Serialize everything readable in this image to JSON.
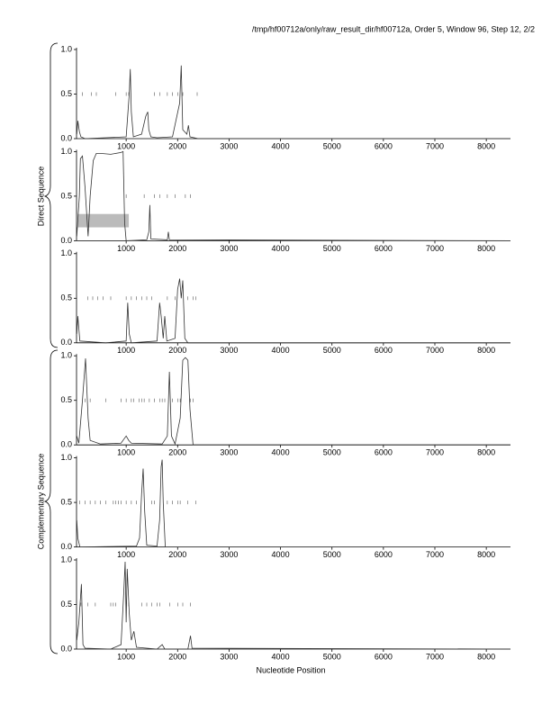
{
  "title": "/tmp/hf00712a/only/raw_result_dir/hf00712a, Order 5, Window 96, Step 12, 2/2",
  "group_labels": [
    "Direct Sequence",
    "Complementary Sequence"
  ],
  "chart_data": [
    {
      "type": "line",
      "xlim": [
        0,
        8470
      ],
      "ylim": [
        0,
        1
      ],
      "xticks": [
        1000,
        2000,
        3000,
        4000,
        5000,
        6000,
        7000,
        8000
      ],
      "yticks": [
        {
          "value": 0,
          "label": "0.0"
        },
        {
          "value": 0.5,
          "label": "0.5"
        },
        {
          "value": 1,
          "label": "1.0"
        }
      ],
      "x": [
        40,
        60,
        90,
        120,
        200,
        600,
        1000,
        1060,
        1080,
        1100,
        1140,
        1300,
        1380,
        1420,
        1440,
        1480,
        1600,
        1900,
        2040,
        2070,
        2100,
        2180,
        2210,
        2240,
        2400,
        8470
      ],
      "series": [
        {
          "color": "#333333",
          "values": [
            0.05,
            0.2,
            0.08,
            0.02,
            0,
            0.01,
            0.02,
            0.5,
            0.78,
            0.3,
            0.02,
            0.05,
            0.25,
            0.3,
            0.1,
            0.02,
            0.01,
            0.02,
            0.4,
            0.82,
            0.1,
            0.05,
            0.15,
            0.02,
            0,
            0
          ]
        }
      ],
      "marker_y": 0.5,
      "markers": [
        150,
        320,
        420,
        800,
        1000,
        1050,
        1550,
        1650,
        1800,
        1900,
        2000,
        2100,
        2380
      ]
    },
    {
      "type": "line",
      "xlim": [
        0,
        8470
      ],
      "ylim": [
        0,
        1
      ],
      "xticks": [
        1000,
        2000,
        3000,
        4000,
        5000,
        6000,
        7000,
        8000
      ],
      "yticks": [
        {
          "value": 0,
          "label": "0.0"
        },
        {
          "value": 0.5,
          "label": "0.5"
        },
        {
          "value": 1,
          "label": "1.0"
        }
      ],
      "x": [
        40,
        90,
        110,
        150,
        200,
        260,
        300,
        360,
        420,
        500,
        700,
        900,
        940,
        970,
        1000,
        1400,
        1440,
        1460,
        1480,
        1800,
        1820,
        1840,
        8470
      ],
      "series": [
        {
          "color": "#333333",
          "values": [
            0.05,
            0.5,
            0.92,
            0.95,
            0.6,
            0.05,
            0.5,
            0.9,
            0.98,
            0.98,
            0.97,
            0.99,
            1.0,
            0.2,
            0,
            0.01,
            0.1,
            0.4,
            0.02,
            0.01,
            0.1,
            0.01,
            0
          ]
        }
      ],
      "shaded_region": {
        "x": [
          38,
          1051
        ],
        "y": [
          0.15,
          0.3
        ],
        "color": "#bbbbbb"
      },
      "marker_y": 0.5,
      "markers": [
        1000,
        1350,
        1550,
        1650,
        1800,
        1950,
        2150,
        2250
      ]
    },
    {
      "type": "line",
      "xlim": [
        0,
        8470
      ],
      "ylim": [
        0,
        1
      ],
      "xticks": [
        1000,
        2000,
        3000,
        4000,
        5000,
        6000,
        7000,
        8000
      ],
      "yticks": [
        {
          "value": 0,
          "label": "0.0"
        },
        {
          "value": 0.5,
          "label": "0.5"
        },
        {
          "value": 1,
          "label": "1.0"
        }
      ],
      "x": [
        40,
        60,
        100,
        600,
        1000,
        1030,
        1060,
        1100,
        1600,
        1650,
        1680,
        1720,
        1750,
        1790,
        1950,
        2000,
        2040,
        2070,
        2100,
        2140,
        2200,
        8470
      ],
      "series": [
        {
          "color": "#333333",
          "values": [
            0.1,
            0.3,
            0.02,
            0,
            0.02,
            0.45,
            0.1,
            0,
            0.02,
            0.45,
            0.3,
            0.05,
            0.3,
            0.02,
            0.05,
            0.6,
            0.72,
            0.5,
            0.7,
            0.05,
            0,
            0
          ]
        }
      ],
      "marker_y": 0.5,
      "markers": [
        250,
        350,
        450,
        550,
        700,
        1000,
        1100,
        1200,
        1300,
        1400,
        1500,
        1800,
        1950,
        2200,
        2300,
        2350
      ]
    },
    {
      "type": "line",
      "xlim": [
        0,
        8470
      ],
      "ylim": [
        0,
        1
      ],
      "xticks": [
        1000,
        2000,
        3000,
        4000,
        5000,
        6000,
        7000,
        8000
      ],
      "yticks": [
        {
          "value": 0,
          "label": "0.0"
        },
        {
          "value": 0.5,
          "label": "0.5"
        },
        {
          "value": 1,
          "label": "1.0"
        }
      ],
      "x": [
        40,
        80,
        150,
        210,
        260,
        300,
        500,
        900,
        1000,
        1050,
        1100,
        1700,
        1800,
        1840,
        1880,
        1950,
        2050,
        2100,
        2150,
        2200,
        2240,
        2300,
        8470
      ],
      "series": [
        {
          "color": "#333333",
          "values": [
            0.1,
            0.02,
            0.5,
            0.97,
            0.3,
            0.05,
            0.01,
            0.02,
            0.1,
            0.05,
            0.02,
            0.01,
            0.1,
            0.82,
            0.1,
            0.01,
            0.3,
            0.95,
            0.98,
            0.95,
            0.4,
            0,
            0
          ]
        }
      ],
      "marker_y": 0.5,
      "markers": [
        200,
        300,
        600,
        900,
        1000,
        1100,
        1150,
        1250,
        1300,
        1350,
        1450,
        1550,
        1650,
        1700,
        1750,
        1900,
        2000,
        2050,
        2250,
        2300
      ]
    },
    {
      "type": "line",
      "xlim": [
        0,
        8470
      ],
      "ylim": [
        0,
        1
      ],
      "xticks": [
        1000,
        2000,
        3000,
        4000,
        5000,
        6000,
        7000,
        8000
      ],
      "yticks": [
        {
          "value": 0,
          "label": "0.0"
        },
        {
          "value": 0.5,
          "label": "0.5"
        },
        {
          "value": 1,
          "label": "1.0"
        }
      ],
      "x": [
        40,
        60,
        100,
        1200,
        1260,
        1300,
        1330,
        1360,
        1400,
        1600,
        1650,
        1680,
        1700,
        1720,
        1760,
        8470
      ],
      "series": [
        {
          "color": "#333333",
          "values": [
            0.3,
            0.1,
            0,
            0.01,
            0.1,
            0.6,
            0.88,
            0.4,
            0.02,
            0.01,
            0.3,
            0.9,
            0.98,
            0.5,
            0,
            0
          ]
        }
      ],
      "marker_y": 0.5,
      "markers": [
        100,
        200,
        300,
        400,
        500,
        600,
        750,
        800,
        850,
        900,
        1000,
        1100,
        1200,
        1500,
        1550,
        1800,
        1900,
        2000,
        2050,
        2200,
        2350
      ]
    },
    {
      "type": "line",
      "xlim": [
        0,
        8470
      ],
      "ylim": [
        0,
        1
      ],
      "xticks": [
        1000,
        2000,
        3000,
        4000,
        5000,
        6000,
        7000,
        8000
      ],
      "yticks": [
        {
          "value": 0,
          "label": "0.0"
        },
        {
          "value": 0.5,
          "label": "0.5"
        },
        {
          "value": 1,
          "label": "1.0"
        }
      ],
      "x": [
        40,
        80,
        130,
        160,
        200,
        700,
        900,
        950,
        980,
        1000,
        1020,
        1060,
        1100,
        1150,
        1200,
        1600,
        1700,
        1750,
        2200,
        2250,
        2280,
        8470
      ],
      "series": [
        {
          "color": "#333333",
          "values": [
            0.1,
            0.3,
            0.73,
            0.05,
            0.01,
            0,
            0.05,
            0.6,
            0.98,
            0.3,
            0.9,
            0.4,
            0.1,
            0.2,
            0.02,
            0,
            0.05,
            0,
            0,
            0.15,
            0.01,
            0
          ]
        }
      ],
      "marker_y": 0.5,
      "markers": [
        120,
        250,
        400,
        700,
        750,
        800,
        1050,
        1300,
        1400,
        1500,
        1600,
        1650,
        1850,
        2000,
        2100,
        2250
      ],
      "xlabel": "Nucleotide Position"
    }
  ]
}
